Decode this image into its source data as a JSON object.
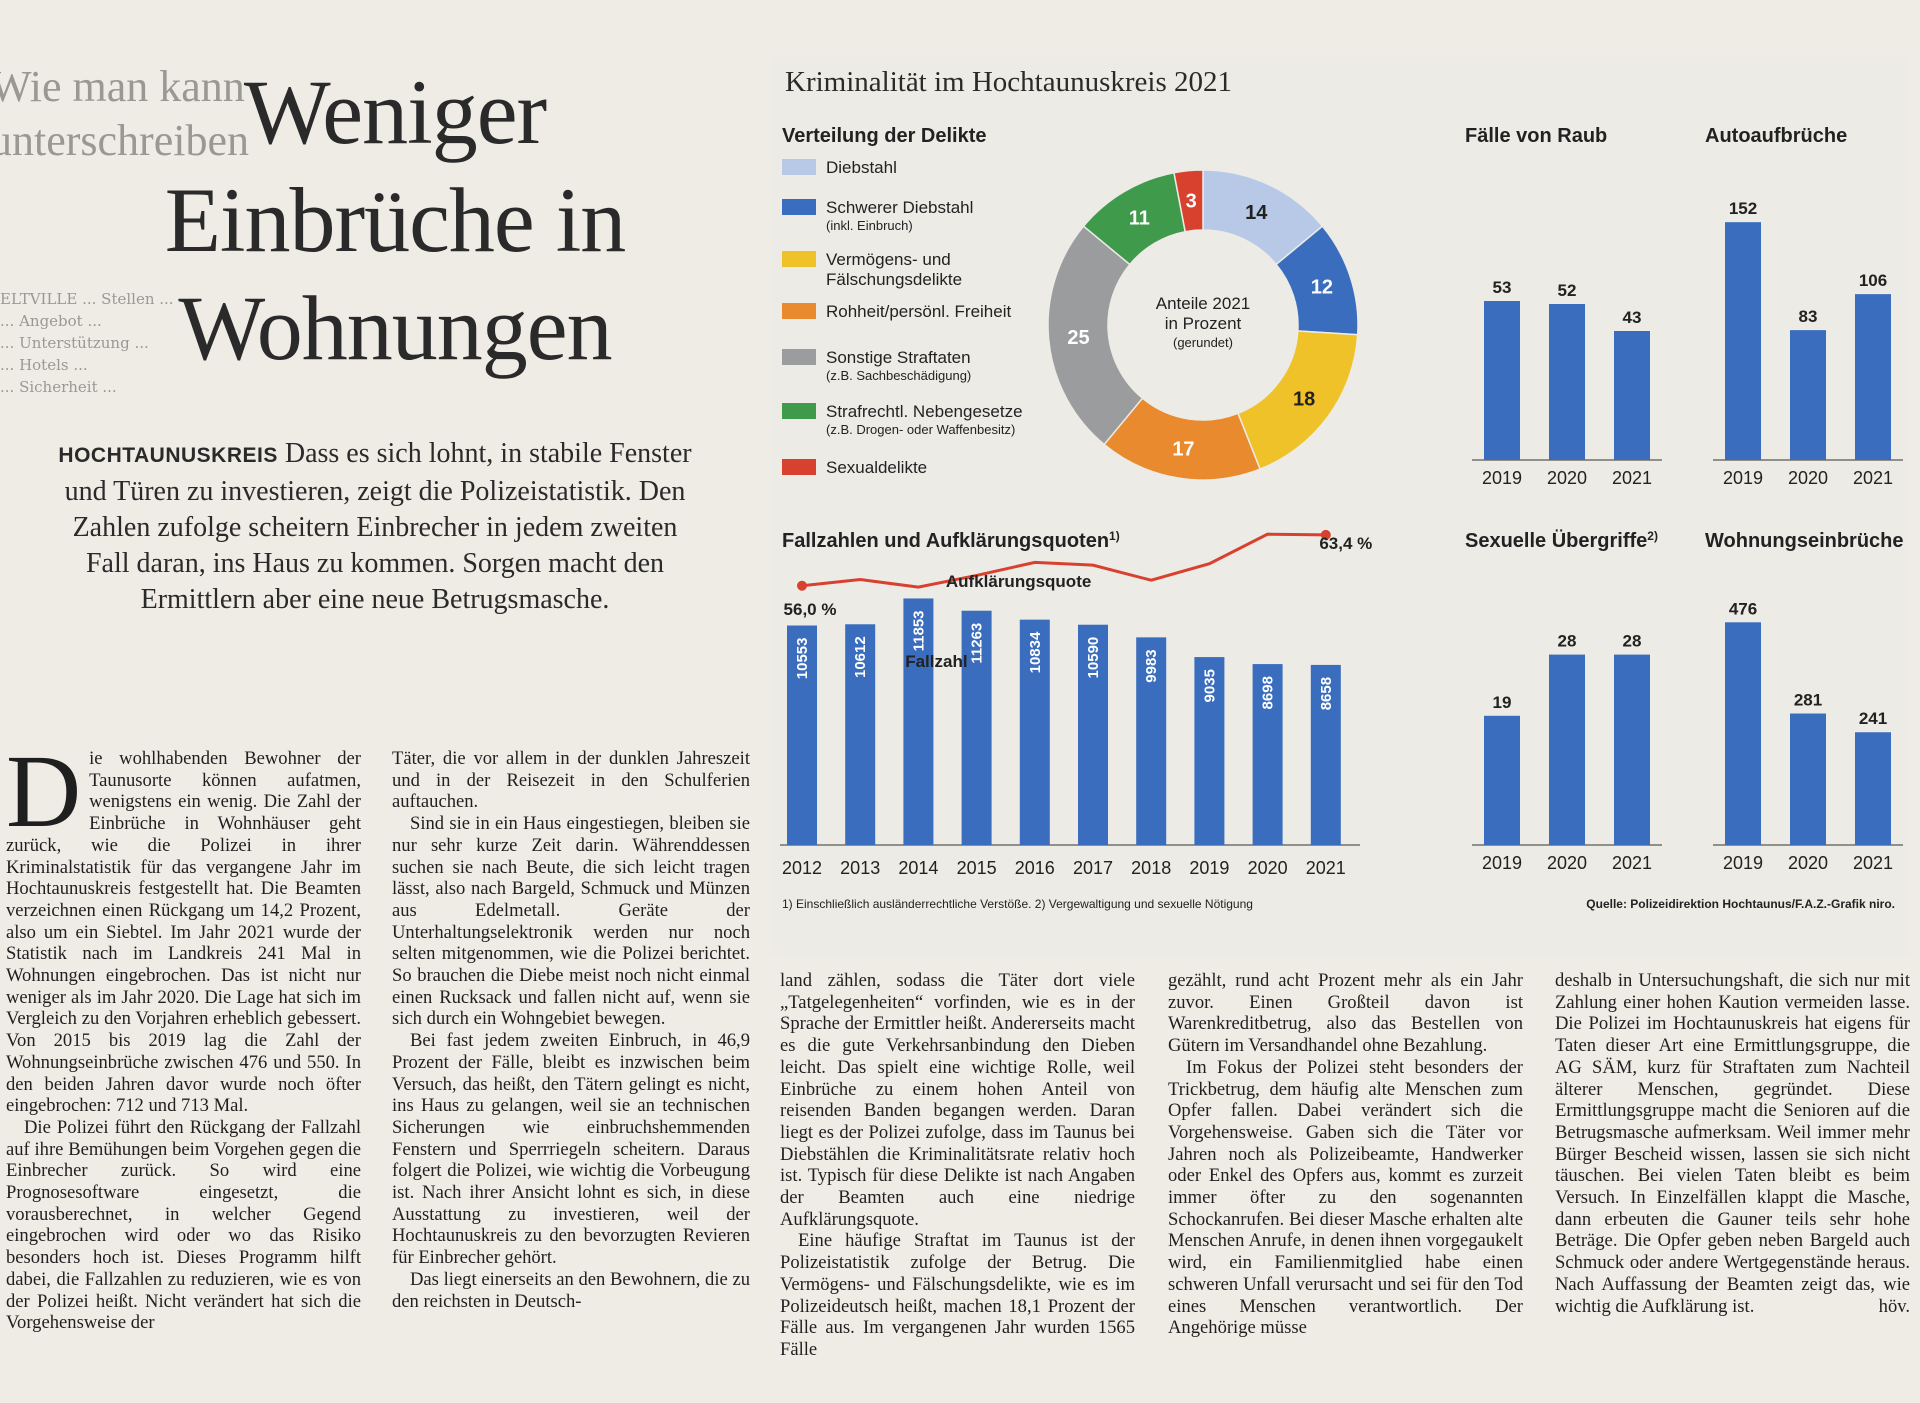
{
  "neighbour": {
    "heading_lines": [
      "Wie man kann",
      "unterschreiben"
    ],
    "lines": [
      "ELTVILLE ... Stellen ...",
      "... Angebot ...",
      "... Unterstützung ...",
      "... Hotels ...",
      "... Sicherheit ..."
    ]
  },
  "article": {
    "headline": "Weniger Einbrüche in Wohnungen",
    "kicker": "HOCHTAUNUSKREIS",
    "lead": "Dass es sich lohnt, in stabile Fenster und Türen zu investieren, zeigt die Polizeistatistik. Den Zahlen zufolge scheitern Einbrecher in jedem zweiten Fall daran, ins Haus zu kommen. Sorgen macht den Ermittlern aber eine neue Betrugsmasche.",
    "dropcap": "D",
    "col1": [
      "ie wohlhabenden Bewohner der Taunusorte können aufatmen, wenigstens ein wenig. Die Zahl der Einbrüche in Wohnhäuser geht zurück, wie die Polizei in ihrer Kriminalstatistik für das vergangene Jahr im Hochtaunuskreis festgestellt hat. Die Beamten verzeichnen einen Rückgang um 14,2 Prozent, also um ein Siebtel. Im Jahr 2021 wurde der Statistik nach im Landkreis 241 Mal in Wohnungen eingebrochen. Das ist nicht nur weniger als im Jahr 2020. Die Lage hat sich im Vergleich zu den Vorjahren erheblich gebessert. Von 2015 bis 2019 lag die Zahl der Wohnungseinbrüche zwischen 476 und 550. In den beiden Jahren davor wurde noch öfter eingebrochen: 712 und 713 Mal.",
      "Die Polizei führt den Rückgang der Fallzahl auf ihre Bemühungen beim Vorgehen gegen die Einbrecher zurück. So wird eine Prognosesoftware eingesetzt, die vorausberechnet, in welcher Gegend eingebrochen wird oder wo das Risiko besonders hoch ist. Dieses Programm hilft dabei, die Fallzahlen zu reduzieren, wie es von der Polizei heißt. Nicht verändert hat sich die Vorgehensweise der"
    ],
    "col2": [
      "Täter, die vor allem in der dunklen Jahreszeit und in der Reisezeit in den Schulferien auftauchen.",
      "Sind sie in ein Haus eingestiegen, bleiben sie nur sehr kurze Zeit darin. Währenddessen suchen sie nach Beute, die sich leicht tragen lässt, also nach Bargeld, Schmuck und Münzen aus Edelmetall. Geräte der Unterhaltungselektronik werden nur noch selten mitgenommen, wie die Polizei berichtet. So brauchen die Diebe meist noch nicht einmal einen Rucksack und fallen nicht auf, wenn sie sich durch ein Wohngebiet bewegen.",
      "Bei fast jedem zweiten Einbruch, in 46,9 Prozent der Fälle, bleibt es inzwischen beim Versuch, das heißt, den Tätern gelingt es nicht, ins Haus zu gelangen, weil sie an technischen Sicherungen wie einbruchshemmenden Fenstern und Sperrriegeln scheitern. Daraus folgert die Polizei, wie wichtig die Vorbeugung ist. Nach ihrer Ansicht lohnt es sich, in diese Ausstattung zu investieren, weil der Hochtaunuskreis zu den bevorzugten Revieren für Einbrecher gehört.",
      "Das liegt einerseits an den Bewohnern, die zu den reichsten in Deutsch-"
    ],
    "col3": [
      "land zählen, sodass die Täter dort viele „Tatgelegenheiten“ vorfinden, wie es in der Sprache der Ermittler heißt. Andererseits macht es die gute Verkehrsanbindung den Dieben leicht. Das spielt eine wichtige Rolle, weil Einbrüche zu einem hohen Anteil von reisenden Banden begangen werden. Daran liegt es der Polizei zufolge, dass im Taunus bei Diebstählen die Kriminalitätsrate relativ hoch ist. Typisch für diese Delikte ist nach Angaben der Beamten auch eine niedrige Aufklärungsquote.",
      "Eine häufige Straftat im Taunus ist der Polizeistatistik zufolge der Betrug. Die Vermögens- und Fälschungsdelikte, wie es im Polizeideutsch heißt, machen 18,1 Prozent der Fälle aus. Im vergangenen Jahr wurden 1565 Fälle"
    ],
    "col4": [
      "gezählt, rund acht Prozent mehr als ein Jahr zuvor. Einen Großteil davon ist Warenkreditbetrug, also das Bestellen von Gütern im Versandhandel ohne Bezahlung.",
      "Im Fokus der Polizei steht besonders der Trickbetrug, dem häufig alte Menschen zum Opfer fallen. Dabei verändert sich die Vorgehensweise. Gaben sich die Täter vor Jahren noch als Polizeibeamte, Handwerker oder Enkel des Opfers aus, kommt es zurzeit immer öfter zu den sogenannten Schockanrufen. Bei dieser Masche erhalten alte Menschen Anrufe, in denen ihnen vorgegaukelt wird, ein Familienmitglied habe einen schweren Unfall verursacht und sei für den Tod eines Menschen verantwortlich. Der Angehörige müsse"
    ],
    "col5": [
      "deshalb in Untersuchungshaft, die sich nur mit Zahlung einer hohen Kaution vermeiden lasse. Die Polizei im Hochtaunuskreis hat eigens für Taten dieser Art eine Ermittlungsgruppe, die AG SÄM, kurz für Straftaten zum Nachteil älterer Menschen, gegründet. Diese Ermittlungsgruppe macht die Senioren auf die Betrugsmasche aufmerksam. Weil immer mehr Bürger Bescheid wissen, lassen sie sich nicht täuschen. Bei vielen Taten bleibt es beim Versuch. In Einzelfällen klappt die Masche, dann erbeuten die Gauner teils sehr hohe Beträge. Die Opfer geben neben Bargeld auch Schmuck oder andere Wertgegenstände heraus. Nach Auffassung der Beamten zeigt das, wie wichtig die Aufklärung ist."
    ],
    "signoff": "höv."
  },
  "graphic": {
    "title": "Kriminalität im Hochtaunuskreis 2021",
    "footnote": "1) Einschließlich ausländerrechtliche Verstöße.  2) Vergewaltigung und sexuelle Nötigung",
    "source": "Quelle: Polizeidirektion Hochtaunus/F.A.Z.-Grafik niro."
  },
  "chart_data": [
    {
      "type": "pie",
      "title": "Verteilung der Delikte",
      "center_label": [
        "Anteile 2021",
        "in Prozent",
        "(gerundet)"
      ],
      "slices": [
        {
          "label": "Diebstahl",
          "sublabel": "",
          "value": 14,
          "color": "#b7c9e6"
        },
        {
          "label": "Schwerer Diebstahl",
          "sublabel": "(inkl. Einbruch)",
          "value": 12,
          "color": "#3a6dbd"
        },
        {
          "label": "Vermögens- und",
          "sublabel": "Fälschungsdelikte",
          "value": 18,
          "color": "#efc22a"
        },
        {
          "label": "Rohheit/persönl. Freiheit",
          "sublabel": "",
          "value": 17,
          "color": "#e88a2d"
        },
        {
          "label": "Sonstige Straftaten",
          "sublabel": "(z.B. Sachbeschädigung)",
          "value": 25,
          "color": "#9a9c9e"
        },
        {
          "label": "Strafrechtl. Nebengesetze",
          "sublabel": "(z.B. Drogen- oder Waffenbesitz)",
          "value": 11,
          "color": "#3f9a4c"
        },
        {
          "label": "Sexualdelikte",
          "sublabel": "",
          "value": 3,
          "color": "#d9412f"
        }
      ]
    },
    {
      "type": "bar",
      "title": "Fallzahlen und Aufklärungsquoten",
      "title_note": "1)",
      "series_label": "Fallzahl",
      "categories": [
        "2012",
        "2013",
        "2014",
        "2015",
        "2016",
        "2017",
        "2018",
        "2019",
        "2020",
        "2021"
      ],
      "values": [
        10553,
        10612,
        11853,
        11263,
        10834,
        10590,
        9983,
        9035,
        8698,
        8658
      ],
      "ylim": [
        0,
        12500
      ],
      "color": "#3a6dbd"
    },
    {
      "type": "line",
      "series_label": "Aufklärungsquote",
      "categories": [
        "2012",
        "2013",
        "2014",
        "2015",
        "2016",
        "2017",
        "2018",
        "2019",
        "2020",
        "2021"
      ],
      "values": [
        56.0,
        56.9,
        55.8,
        57.5,
        59.4,
        59.0,
        56.8,
        59.2,
        63.5,
        63.4
      ],
      "start_label": "56,0 %",
      "end_label": "63,4 %",
      "ylim": [
        50,
        66
      ],
      "color": "#d9412f"
    },
    {
      "type": "bar",
      "title": "Fälle von Raub",
      "categories": [
        "2019",
        "2020",
        "2021"
      ],
      "values": [
        53,
        52,
        43
      ],
      "ylim": [
        0,
        80
      ],
      "color": "#3a6dbd"
    },
    {
      "type": "bar",
      "title": "Autoaufbrüche",
      "categories": [
        "2019",
        "2020",
        "2021"
      ],
      "values": [
        152,
        83,
        106
      ],
      "ylim": [
        0,
        170
      ],
      "color": "#3a6dbd"
    },
    {
      "type": "bar",
      "title": "Sexuelle Übergriffe",
      "title_note": "2)",
      "categories": [
        "2019",
        "2020",
        "2021"
      ],
      "values": [
        19,
        28,
        28
      ],
      "ylim": [
        0,
        40
      ],
      "color": "#3a6dbd"
    },
    {
      "type": "bar",
      "title": "Wohnungseinbrüche",
      "categories": [
        "2019",
        "2020",
        "2021"
      ],
      "values": [
        476,
        281,
        241
      ],
      "ylim": [
        0,
        560
      ],
      "color": "#3a6dbd"
    }
  ]
}
